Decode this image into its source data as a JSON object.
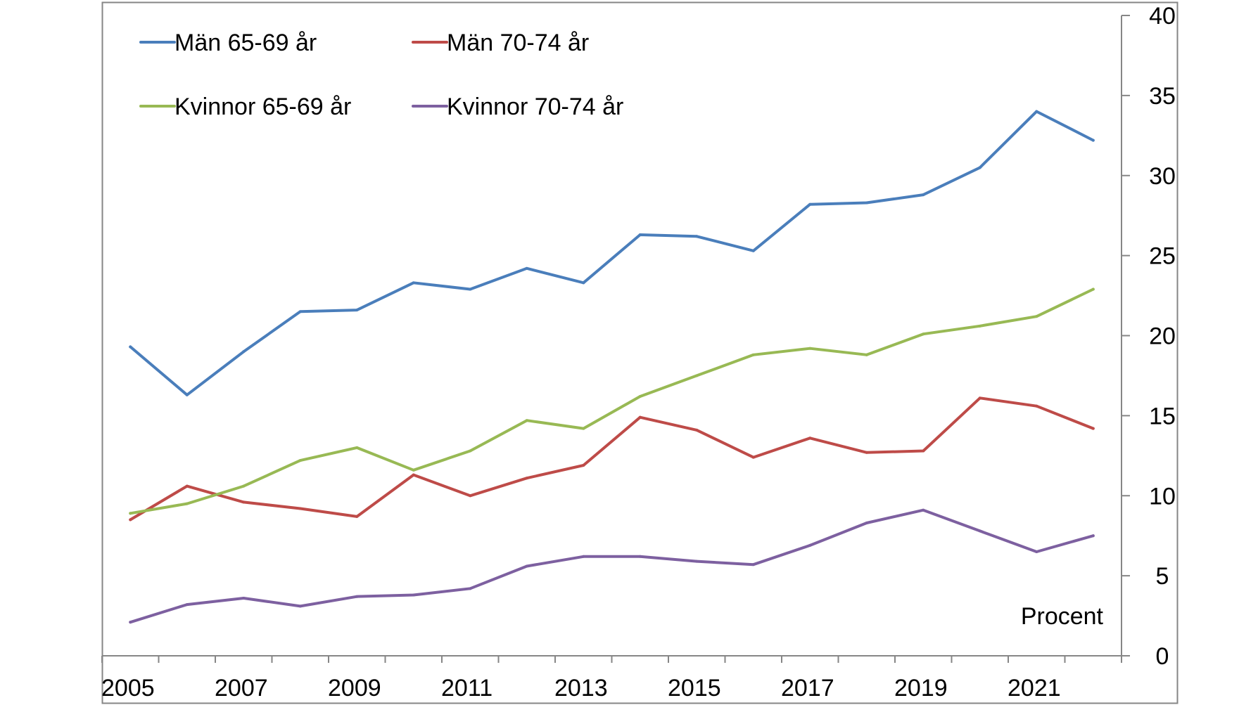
{
  "chart_data": {
    "type": "line",
    "title": "",
    "xlabel": "",
    "ylabel": "",
    "unit_label": "Procent",
    "x": [
      2005,
      2006,
      2007,
      2008,
      2009,
      2010,
      2011,
      2012,
      2013,
      2014,
      2015,
      2016,
      2017,
      2018,
      2019,
      2020,
      2021,
      2022
    ],
    "xlim": [
      2004.5,
      2022.5
    ],
    "x_tick_labels": [
      "2005",
      "2007",
      "2009",
      "2011",
      "2013",
      "2015",
      "2017",
      "2019",
      "2021"
    ],
    "y_tick_labels": [
      "0",
      "5",
      "10",
      "15",
      "20",
      "25",
      "30",
      "35",
      "40"
    ],
    "ylim": [
      0,
      40
    ],
    "y_axis_side": "right",
    "grid": false,
    "legend_position": "top-left",
    "series": [
      {
        "name": "Män 65-69 år",
        "color": "#4A7EBB",
        "values": [
          19.3,
          16.3,
          19.0,
          21.5,
          21.6,
          23.3,
          22.9,
          24.2,
          23.3,
          26.3,
          26.2,
          25.3,
          28.2,
          28.3,
          28.8,
          30.5,
          34.0,
          32.2
        ]
      },
      {
        "name": "Män 70-74 år",
        "color": "#BE4B48",
        "values": [
          8.5,
          10.6,
          9.6,
          9.2,
          8.7,
          11.3,
          10.0,
          11.1,
          11.9,
          14.9,
          14.1,
          12.4,
          13.6,
          12.7,
          12.8,
          16.1,
          15.6,
          14.2
        ]
      },
      {
        "name": "Kvinnor 65-69 år",
        "color": "#98B954",
        "values": [
          8.9,
          9.5,
          10.6,
          12.2,
          13.0,
          11.6,
          12.8,
          14.7,
          14.2,
          16.2,
          17.5,
          18.8,
          19.2,
          18.8,
          20.1,
          20.6,
          21.2,
          22.9
        ]
      },
      {
        "name": "Kvinnor 70-74 år",
        "color": "#7D60A0",
        "values": [
          2.1,
          3.2,
          3.6,
          3.1,
          3.7,
          3.8,
          4.2,
          5.6,
          6.2,
          6.2,
          5.9,
          5.7,
          6.9,
          8.3,
          9.1,
          7.8,
          6.5,
          7.5
        ]
      }
    ]
  }
}
